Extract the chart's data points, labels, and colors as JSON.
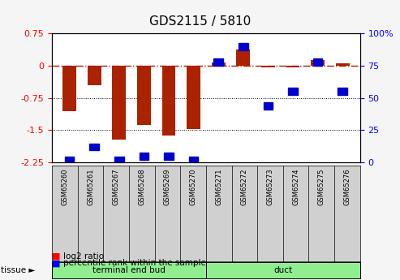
{
  "title": "GDS2115 / 5810",
  "categories": [
    "GSM65260",
    "GSM65261",
    "GSM65267",
    "GSM65268",
    "GSM65269",
    "GSM65270",
    "GSM65271",
    "GSM65272",
    "GSM65273",
    "GSM65274",
    "GSM65275",
    "GSM65276"
  ],
  "log2_ratio": [
    -1.05,
    -0.45,
    -1.72,
    -1.38,
    -1.62,
    -1.48,
    0.08,
    0.38,
    -0.04,
    -0.04,
    0.13,
    0.05
  ],
  "percentile_rank": [
    2,
    12,
    2,
    5,
    5,
    2,
    78,
    90,
    44,
    55,
    78,
    55
  ],
  "tissue_groups": [
    {
      "label": "terminal end bud",
      "start": 0,
      "end": 6,
      "color": "#90EE90"
    },
    {
      "label": "duct",
      "start": 6,
      "end": 12,
      "color": "#90EE90"
    }
  ],
  "bar_color": "#AA2200",
  "point_color": "#0000CC",
  "ylim_left": [
    -2.25,
    0.75
  ],
  "ylim_right": [
    0,
    100
  ],
  "left_yticks": [
    -2.25,
    -1.5,
    -0.75,
    0,
    0.75
  ],
  "right_yticks": [
    0,
    25,
    50,
    75,
    100
  ],
  "left_tick_labels": [
    "-2.25",
    "-1.5",
    "-0.75",
    "0",
    "0.75"
  ],
  "right_tick_labels": [
    "0",
    "25",
    "50",
    "75",
    "100%"
  ],
  "hline_y": 0,
  "dotted_lines": [
    -0.75,
    -1.5
  ],
  "bg_color": "#F5F5F5",
  "plot_bg": "#FFFFFF",
  "legend_red_label": "log2 ratio",
  "legend_blue_label": "percentile rank within the sample",
  "tissue_label": "tissue",
  "tissue_arrow": "►"
}
